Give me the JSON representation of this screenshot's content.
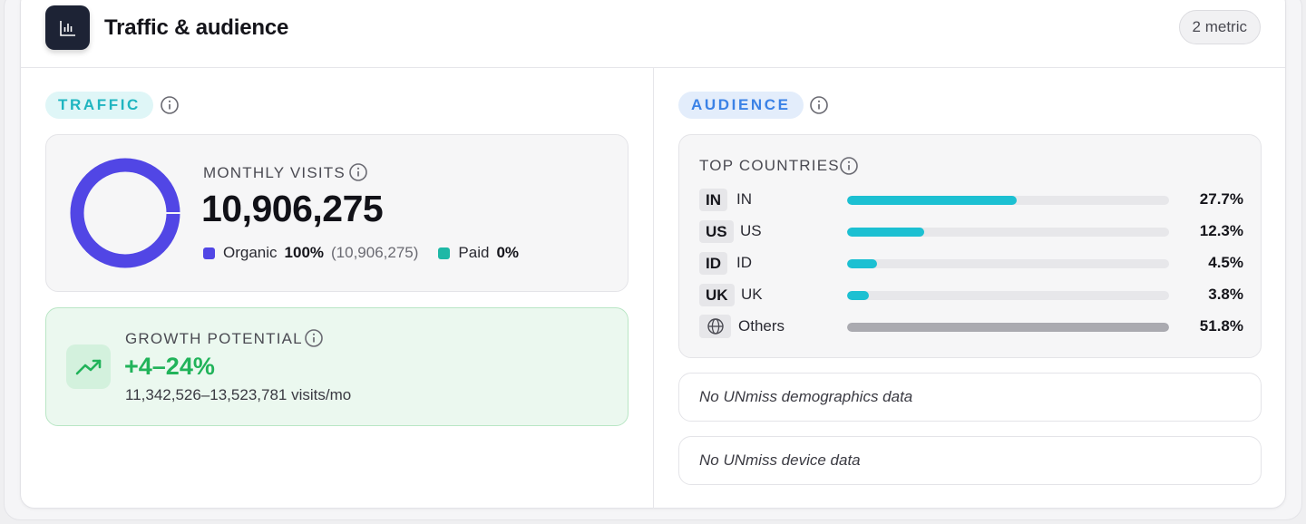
{
  "header": {
    "title": "Traffic & audience",
    "metric_badge": "2 metric",
    "icon": "bar-chart-icon"
  },
  "traffic": {
    "section_label": "TRAFFIC",
    "monthly_visits": {
      "label": "MONTHLY VISITS",
      "value": "10,906,275",
      "organic_label": "Organic",
      "organic_pct": "100%",
      "organic_abs": "(10,906,275)",
      "organic_share": 1.0,
      "paid_label": "Paid",
      "paid_pct": "0%",
      "organic_color": "#5146e5",
      "paid_color": "#1eb8a6"
    },
    "growth": {
      "label": "GROWTH POTENTIAL",
      "value": "+4–24%",
      "range": "11,342,526–13,523,781 visits/mo",
      "icon": "trending-up-icon",
      "accent": "#21b35a"
    }
  },
  "audience": {
    "section_label": "AUDIENCE",
    "top_countries": {
      "label": "TOP COUNTRIES",
      "rows": [
        {
          "code": "IN",
          "name": "IN",
          "pct": "27.7%",
          "share": 0.527
        },
        {
          "code": "US",
          "name": "US",
          "pct": "12.3%",
          "share": 0.239
        },
        {
          "code": "ID",
          "name": "ID",
          "pct": "4.5%",
          "share": 0.093
        },
        {
          "code": "UK",
          "name": "UK",
          "pct": "3.8%",
          "share": 0.068
        },
        {
          "code": "",
          "name": "Others",
          "pct": "51.8%",
          "share": 1.0,
          "icon": "globe-icon"
        }
      ],
      "bar_color": "#1cc0d2",
      "others_color": "#aaaab0"
    },
    "demographics_note": "No UNmiss demographics data",
    "device_note": "No UNmiss device data"
  }
}
